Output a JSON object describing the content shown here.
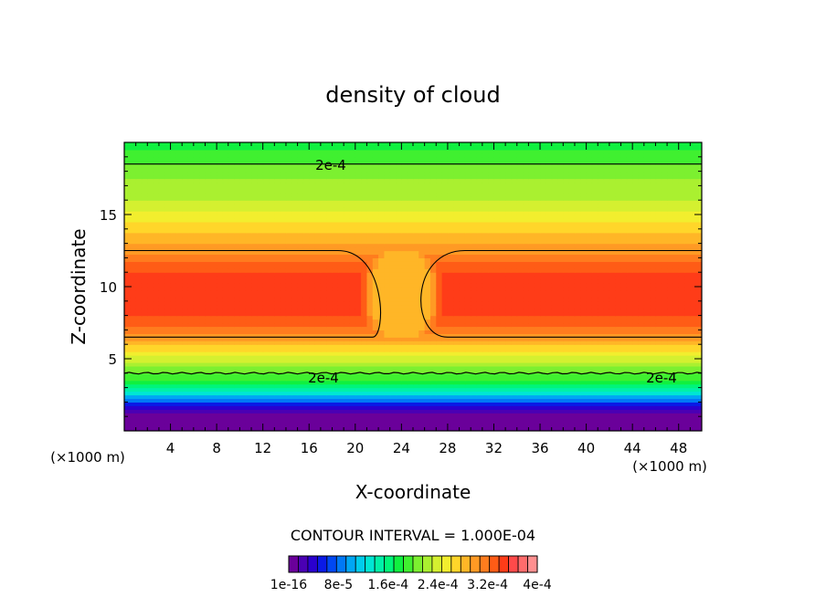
{
  "chart_data": {
    "type": "heatmap",
    "title": "density of cloud",
    "xlabel": "X-coordinate",
    "ylabel": "Z-coordinate",
    "x_unit": "(×1000 m)",
    "xlim": [
      0,
      50
    ],
    "ylim": [
      0,
      20
    ],
    "x_ticks": [
      4,
      8,
      12,
      16,
      20,
      24,
      28,
      32,
      36,
      40,
      44,
      48
    ],
    "y_ticks": [
      5,
      10,
      15
    ],
    "contour_interval_text": "CONTOUR INTERVAL = 1.000E-04",
    "contour_labels": [
      "2e-4",
      "2e-4",
      "2e-4"
    ],
    "colorbar": {
      "tick_labels": [
        "1e-16",
        "8e-5",
        "1.6e-4",
        "2.4e-4",
        "3.2e-4",
        "4e-4"
      ],
      "tick_values": [
        0,
        8e-05,
        0.00016,
        0.00024,
        0.00032,
        0.0004
      ],
      "range": [
        0,
        0.0004
      ],
      "colors": [
        "#6a009a",
        "#4a00b4",
        "#2a00cf",
        "#0a1ae6",
        "#0048f2",
        "#0078f6",
        "#00a6f4",
        "#00ccec",
        "#00e6d4",
        "#00f0a8",
        "#00f57a",
        "#10f040",
        "#40f030",
        "#7cf030",
        "#aaf030",
        "#d4f030",
        "#f2ee2e",
        "#ffd62a",
        "#ffb627",
        "#ff9a24",
        "#ff7c1e",
        "#ff5c16",
        "#ff3c18",
        "#ff4a4a",
        "#ff6c6c",
        "#ff9090"
      ]
    },
    "profile": {
      "z": [
        0,
        1.0,
        1.4,
        1.8,
        2.2,
        2.6,
        3.0,
        3.4,
        4.0,
        5.0,
        6.0,
        6.5,
        7.0,
        8.0,
        9.0,
        10.0,
        11.0,
        12.0,
        12.5,
        13.0,
        14.0,
        15.0,
        16.0,
        17.0,
        18.0,
        18.5,
        19.0,
        20.0
      ],
      "density": [
        0,
        0,
        2e-05,
        5e-05,
        9e-05,
        0.00013,
        0.00016,
        0.00018,
        0.0002,
        0.00024,
        0.00028,
        0.0003,
        0.00032,
        0.00034,
        0.00035,
        0.00035,
        0.00034,
        0.00032,
        0.0003,
        0.00029,
        0.00027,
        0.00025,
        0.00023,
        0.00022,
        0.00021,
        0.0002,
        0.00019,
        0.00018
      ]
    },
    "gap_x": [
      21.5,
      26.5
    ],
    "gap_z": [
      6.5,
      12.5
    ],
    "gap_density": 0.00028
  }
}
